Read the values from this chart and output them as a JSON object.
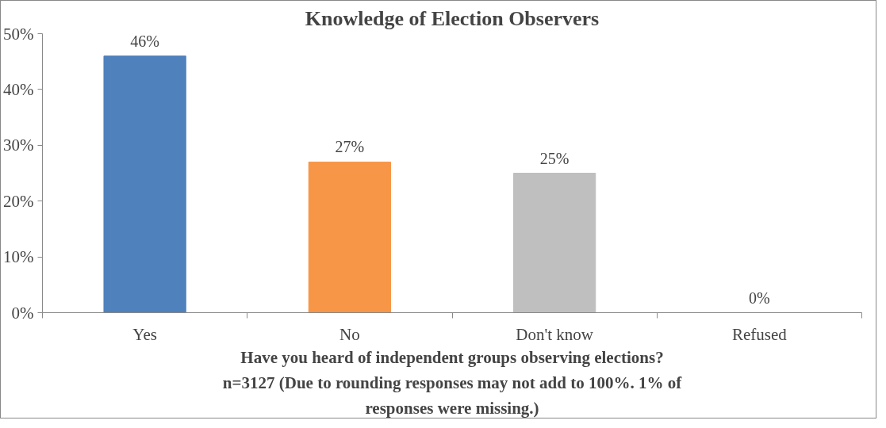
{
  "chart_data": {
    "type": "bar",
    "title": "Knowledge of Election Observers",
    "xlabel": "Have you heard of independent groups observing elections?",
    "annotations": [
      "n=3127 (Due to rounding responses may not add to 100%. 1% of responses were missing.)"
    ],
    "categories": [
      "Yes",
      "No",
      "Don't know",
      "Refused"
    ],
    "values": [
      46,
      27,
      25,
      0
    ],
    "colors": [
      "#4f81bd",
      "#f79646",
      "#bfbfbf",
      "#9bbb59"
    ],
    "value_labels": [
      "46%",
      "27%",
      "25%",
      "0%"
    ],
    "ylim": [
      0,
      50
    ],
    "yticks": [
      {
        "value": 0,
        "label": "0%"
      },
      {
        "value": 10,
        "label": "10%"
      },
      {
        "value": 20,
        "label": "20%"
      },
      {
        "value": 30,
        "label": "30%"
      },
      {
        "value": 40,
        "label": "40%"
      },
      {
        "value": 50,
        "label": "50%"
      }
    ],
    "grid": false
  }
}
